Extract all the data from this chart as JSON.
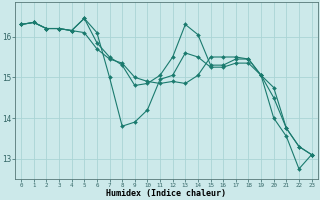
{
  "xlabel": "Humidex (Indice chaleur)",
  "ylabel": "",
  "background_color": "#cce9ea",
  "grid_color": "#aad4d5",
  "line_color": "#1a7a6e",
  "xlim": [
    -0.5,
    23.5
  ],
  "ylim": [
    12.5,
    16.85
  ],
  "yticks": [
    13,
    14,
    15,
    16
  ],
  "xticks": [
    0,
    1,
    2,
    3,
    4,
    5,
    6,
    7,
    8,
    9,
    10,
    11,
    12,
    13,
    14,
    15,
    16,
    17,
    18,
    19,
    20,
    21,
    22,
    23
  ],
  "line1_y": [
    16.3,
    16.35,
    16.2,
    16.2,
    16.15,
    16.45,
    16.1,
    15.0,
    13.8,
    13.9,
    14.2,
    14.95,
    15.05,
    15.6,
    15.5,
    15.25,
    15.25,
    15.35,
    15.35,
    15.05,
    14.0,
    13.55,
    12.75,
    13.1
  ],
  "line2_y": [
    16.3,
    16.35,
    16.2,
    16.2,
    16.15,
    16.45,
    15.85,
    15.5,
    15.3,
    14.8,
    14.85,
    15.05,
    15.5,
    16.3,
    16.05,
    15.3,
    15.3,
    15.45,
    15.45,
    15.05,
    14.75,
    13.75,
    13.3,
    13.1
  ],
  "line3_y": [
    16.3,
    16.35,
    16.2,
    16.2,
    16.15,
    16.1,
    15.7,
    15.45,
    15.35,
    15.0,
    14.9,
    14.85,
    14.9,
    14.85,
    15.05,
    15.5,
    15.5,
    15.5,
    15.45,
    15.05,
    14.5,
    13.75,
    13.3,
    13.1
  ]
}
